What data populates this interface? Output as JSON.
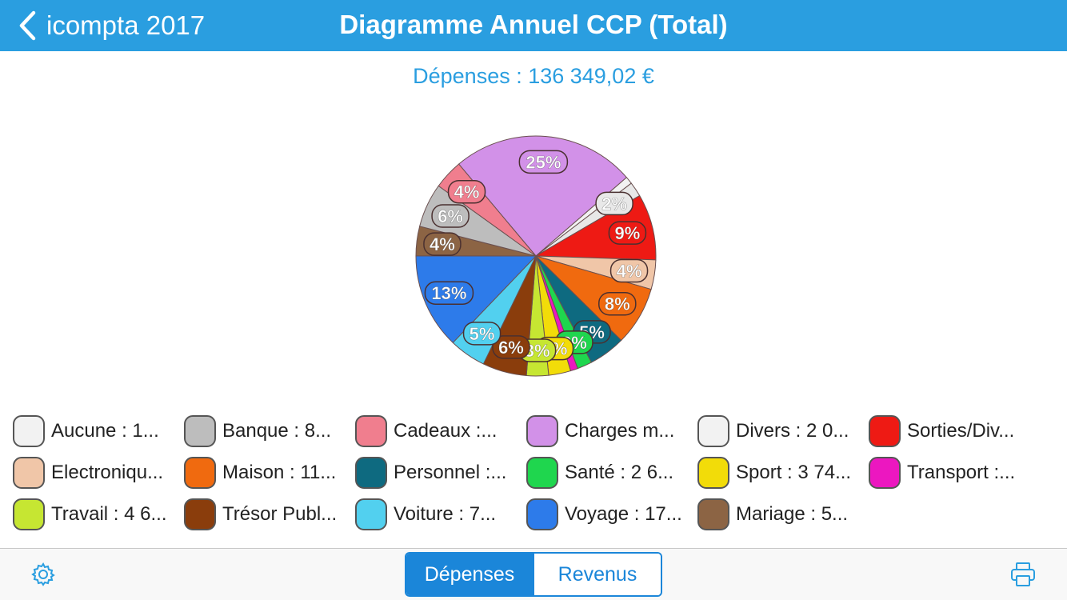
{
  "navbar": {
    "back_label": "icompta 2017",
    "title": "Diagramme Annuel CCP (Total)"
  },
  "total_label": "Dépenses : 136 349,02 €",
  "colors": {
    "accent": "#2a9ee0",
    "segment": "#1b86d9"
  },
  "chart_data": {
    "type": "pie",
    "slices": [
      {
        "label": "Charges m...",
        "percent": 25,
        "color": "#d291e8",
        "shown": "25%"
      },
      {
        "label": "Aucune",
        "percent": 1,
        "color": "#f2f2f2",
        "shown": ""
      },
      {
        "label": "Divers",
        "percent": 2,
        "color": "#e8e8e8",
        "shown": "2%"
      },
      {
        "label": "Sorties/Div...",
        "percent": 9,
        "color": "#ee1a14",
        "shown": "9%"
      },
      {
        "label": "Electroniqu...",
        "percent": 4,
        "color": "#f0c6a8",
        "shown": "4%"
      },
      {
        "label": "Maison",
        "percent": 8,
        "color": "#f06a0f",
        "shown": "8%"
      },
      {
        "label": "Personnel",
        "percent": 5,
        "color": "#0e6a80",
        "shown": "5%"
      },
      {
        "label": "Santé",
        "percent": 2,
        "color": "#1fd64e",
        "shown": "2%"
      },
      {
        "label": "Transport",
        "percent": 1,
        "color": "#ec17c0",
        "shown": ""
      },
      {
        "label": "Sport",
        "percent": 3,
        "color": "#f2dc09",
        "shown": "3%"
      },
      {
        "label": "Travail",
        "percent": 3,
        "color": "#c6e632",
        "shown": "3%"
      },
      {
        "label": "Trésor Publ...",
        "percent": 6,
        "color": "#8a3d0c",
        "shown": "6%"
      },
      {
        "label": "Voiture",
        "percent": 5,
        "color": "#52d0ef",
        "shown": "5%"
      },
      {
        "label": "Voyage",
        "percent": 13,
        "color": "#2d7bea",
        "shown": "13%"
      },
      {
        "label": "Mariage",
        "percent": 4,
        "color": "#8c6444",
        "shown": "4%"
      },
      {
        "label": "Banque",
        "percent": 6,
        "color": "#bdbdbd",
        "shown": "6%"
      },
      {
        "label": "Cadeaux",
        "percent": 4,
        "color": "#f07e8e",
        "shown": "4%"
      }
    ]
  },
  "legend": [
    {
      "label": "Aucune : 1...",
      "color": "#f2f2f2"
    },
    {
      "label": "Banque : 8...",
      "color": "#bdbdbd"
    },
    {
      "label": "Cadeaux :...",
      "color": "#f07e8e"
    },
    {
      "label": "Charges m...",
      "color": "#d291e8"
    },
    {
      "label": "Divers : 2 0...",
      "color": "#f2f2f2"
    },
    {
      "label": "Sorties/Div...",
      "color": "#ee1a14"
    },
    {
      "label": "Electroniqu...",
      "color": "#f0c6a8"
    },
    {
      "label": "Maison : 11...",
      "color": "#f06a0f"
    },
    {
      "label": "Personnel :...",
      "color": "#0e6a80"
    },
    {
      "label": "Santé : 2 6...",
      "color": "#1fd64e"
    },
    {
      "label": "Sport : 3 74...",
      "color": "#f2dc09"
    },
    {
      "label": "Transport :...",
      "color": "#ec17c0"
    },
    {
      "label": "Travail : 4 6...",
      "color": "#c6e632"
    },
    {
      "label": "Trésor Publ...",
      "color": "#8a3d0c"
    },
    {
      "label": "Voiture : 7...",
      "color": "#52d0ef"
    },
    {
      "label": "Voyage : 17...",
      "color": "#2d7bea"
    },
    {
      "label": "Mariage : 5...",
      "color": "#8c6444"
    }
  ],
  "toolbar": {
    "settings_icon": "gear-icon",
    "print_icon": "printer-icon",
    "segments": [
      "Dépenses",
      "Revenus"
    ],
    "selected_segment": "Dépenses"
  }
}
